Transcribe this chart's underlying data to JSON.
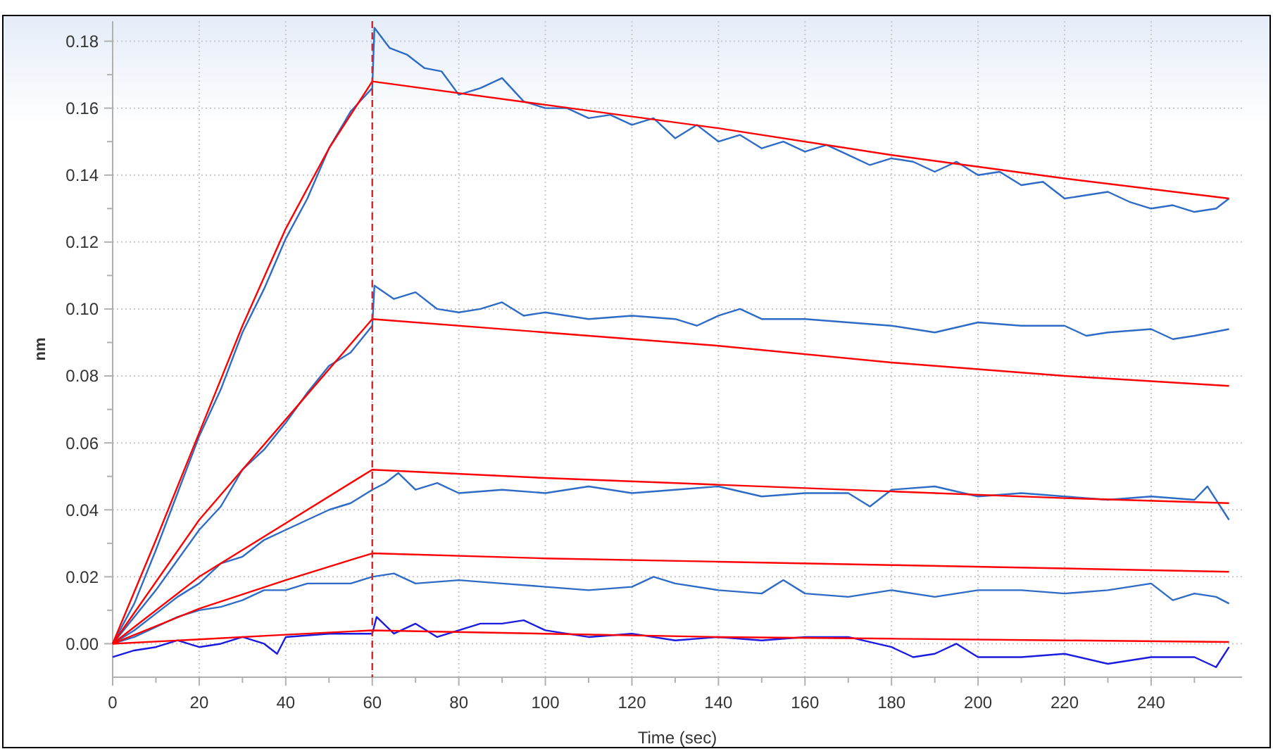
{
  "chart_data": {
    "type": "line",
    "xlabel": "Time (sec)",
    "ylabel": "nm",
    "xlim": [
      0,
      261
    ],
    "ylim": [
      -0.01,
      0.186
    ],
    "xticks": [
      0,
      {
        "value": 10,
        "label": null
      },
      20,
      {
        "value": 30,
        "label": null
      },
      40,
      {
        "value": 50,
        "label": null
      },
      60,
      {
        "value": 70,
        "label": null
      },
      80,
      {
        "value": 90,
        "label": null
      },
      100,
      {
        "value": 110,
        "label": null
      },
      120,
      {
        "value": 130,
        "label": null
      },
      140,
      {
        "value": 150,
        "label": null
      },
      160,
      {
        "value": 170,
        "label": null
      },
      180,
      {
        "value": 190,
        "label": null
      },
      200,
      {
        "value": 210,
        "label": null
      },
      220,
      {
        "value": 230,
        "label": null
      },
      240,
      {
        "value": 250,
        "label": null
      }
    ],
    "yticks": [
      {
        "value": 0,
        "label": "0.00"
      },
      {
        "value": 0.01,
        "label": null
      },
      0.02,
      {
        "value": 0.03,
        "label": null
      },
      0.04,
      {
        "value": 0.05,
        "label": null
      },
      0.06,
      {
        "value": 0.07,
        "label": null
      },
      0.08,
      {
        "value": 0.09,
        "label": null
      },
      {
        "value": 0.1,
        "label": "0.10"
      },
      {
        "value": 0.11,
        "label": null
      },
      0.12,
      {
        "value": 0.13,
        "label": null
      },
      0.14,
      {
        "value": 0.15,
        "label": null
      },
      0.16,
      {
        "value": 0.17,
        "label": null
      },
      0.18
    ],
    "grid": true,
    "line_style": "solid",
    "marker": "none",
    "ref_lines": [
      {
        "axis": "x",
        "value": 60,
        "color": "#e02020",
        "line_style": "dashed"
      }
    ],
    "series": [
      {
        "color": "#2e6bc6",
        "x": [
          0,
          5,
          10,
          15,
          20,
          25,
          30,
          35,
          40,
          45,
          50,
          55,
          60,
          60.5,
          64,
          68,
          72,
          76,
          80,
          85,
          90,
          95,
          100,
          105,
          110,
          115,
          120,
          125,
          130,
          135,
          140,
          145,
          150,
          155,
          160,
          165,
          170,
          175,
          180,
          185,
          190,
          195,
          200,
          205,
          210,
          215,
          220,
          225,
          230,
          235,
          240,
          245,
          250,
          255,
          258
        ],
        "values": [
          0,
          0.012,
          0.028,
          0.045,
          0.062,
          0.076,
          0.093,
          0.106,
          0.121,
          0.133,
          0.148,
          0.159,
          0.166,
          0.184,
          0.178,
          0.176,
          0.172,
          0.171,
          0.164,
          0.166,
          0.169,
          0.162,
          0.16,
          0.16,
          0.157,
          0.158,
          0.155,
          0.157,
          0.151,
          0.155,
          0.15,
          0.152,
          0.148,
          0.15,
          0.147,
          0.149,
          0.146,
          0.143,
          0.145,
          0.144,
          0.141,
          0.144,
          0.14,
          0.141,
          0.137,
          0.138,
          0.133,
          0.134,
          0.135,
          0.132,
          0.13,
          0.131,
          0.129,
          0.13,
          0.133
        ]
      },
      {
        "color": "#2e6bc6",
        "x": [
          0,
          5,
          10,
          15,
          20,
          25,
          30,
          35,
          40,
          45,
          50,
          55,
          60,
          60.5,
          65,
          70,
          75,
          80,
          85,
          90,
          95,
          100,
          110,
          120,
          130,
          135,
          140,
          145,
          150,
          160,
          170,
          180,
          190,
          200,
          210,
          220,
          225,
          230,
          240,
          245,
          250,
          258
        ],
        "values": [
          0,
          0.008,
          0.016,
          0.025,
          0.034,
          0.041,
          0.052,
          0.058,
          0.066,
          0.075,
          0.083,
          0.087,
          0.095,
          0.107,
          0.103,
          0.105,
          0.1,
          0.099,
          0.1,
          0.102,
          0.098,
          0.099,
          0.097,
          0.098,
          0.097,
          0.095,
          0.098,
          0.1,
          0.097,
          0.097,
          0.096,
          0.095,
          0.093,
          0.096,
          0.095,
          0.095,
          0.092,
          0.093,
          0.094,
          0.091,
          0.092,
          0.094
        ]
      },
      {
        "color": "#2e6bc6",
        "x": [
          0,
          5,
          10,
          15,
          20,
          25,
          30,
          35,
          40,
          45,
          50,
          55,
          60,
          63,
          66,
          70,
          75,
          80,
          90,
          100,
          110,
          120,
          130,
          140,
          150,
          160,
          170,
          175,
          180,
          190,
          200,
          210,
          220,
          230,
          240,
          250,
          253,
          258
        ],
        "values": [
          0,
          0.004,
          0.009,
          0.014,
          0.018,
          0.024,
          0.026,
          0.031,
          0.034,
          0.037,
          0.04,
          0.042,
          0.046,
          0.048,
          0.051,
          0.046,
          0.048,
          0.045,
          0.046,
          0.045,
          0.047,
          0.045,
          0.046,
          0.047,
          0.044,
          0.045,
          0.045,
          0.041,
          0.046,
          0.047,
          0.044,
          0.045,
          0.044,
          0.043,
          0.044,
          0.043,
          0.047,
          0.037
        ]
      },
      {
        "color": "#2e6bc6",
        "x": [
          0,
          5,
          10,
          15,
          20,
          25,
          30,
          35,
          40,
          45,
          50,
          55,
          60,
          65,
          70,
          80,
          90,
          100,
          110,
          120,
          125,
          130,
          140,
          150,
          155,
          160,
          170,
          180,
          190,
          200,
          210,
          220,
          230,
          240,
          245,
          250,
          255,
          258
        ],
        "values": [
          0,
          0.002,
          0.005,
          0.008,
          0.01,
          0.011,
          0.013,
          0.016,
          0.016,
          0.018,
          0.018,
          0.018,
          0.02,
          0.021,
          0.018,
          0.019,
          0.018,
          0.017,
          0.016,
          0.017,
          0.02,
          0.018,
          0.016,
          0.015,
          0.019,
          0.015,
          0.014,
          0.016,
          0.014,
          0.016,
          0.016,
          0.015,
          0.016,
          0.018,
          0.013,
          0.015,
          0.014,
          0.012
        ]
      },
      {
        "color": "#1a1ae0",
        "x": [
          0,
          5,
          10,
          15,
          20,
          25,
          30,
          35,
          38,
          40,
          50,
          60,
          61,
          65,
          70,
          75,
          80,
          85,
          90,
          95,
          100,
          110,
          120,
          130,
          140,
          150,
          160,
          170,
          180,
          185,
          190,
          195,
          200,
          210,
          220,
          230,
          240,
          250,
          255,
          258
        ],
        "values": [
          -0.004,
          -0.002,
          -0.001,
          0.001,
          -0.001,
          0,
          0.002,
          0,
          -0.003,
          0.002,
          0.003,
          0.003,
          0.008,
          0.003,
          0.006,
          0.002,
          0.004,
          0.006,
          0.006,
          0.007,
          0.004,
          0.002,
          0.003,
          0.001,
          0.002,
          0.001,
          0.002,
          0.002,
          -0.001,
          -0.004,
          -0.003,
          0,
          -0.004,
          -0.004,
          -0.003,
          -0.006,
          -0.004,
          -0.004,
          -0.007,
          -0.001
        ]
      },
      {
        "color": "#ff0000",
        "x": [
          0,
          10,
          20,
          30,
          40,
          50,
          60,
          100,
          140,
          180,
          220,
          258
        ],
        "values": [
          0,
          0.031,
          0.063,
          0.095,
          0.124,
          0.148,
          0.168,
          0.161,
          0.154,
          0.146,
          0.139,
          0.133
        ]
      },
      {
        "color": "#ff0000",
        "x": [
          0,
          20,
          40,
          60,
          100,
          140,
          180,
          220,
          258
        ],
        "values": [
          0,
          0.037,
          0.067,
          0.097,
          0.093,
          0.089,
          0.084,
          0.08,
          0.077
        ]
      },
      {
        "color": "#ff0000",
        "x": [
          0,
          20,
          40,
          60,
          100,
          140,
          180,
          220,
          258
        ],
        "values": [
          0,
          0.02,
          0.036,
          0.052,
          0.0495,
          0.0475,
          0.0455,
          0.0435,
          0.042
        ]
      },
      {
        "color": "#ff0000",
        "x": [
          0,
          20,
          40,
          60,
          100,
          140,
          180,
          220,
          258
        ],
        "values": [
          0,
          0.0105,
          0.019,
          0.027,
          0.0255,
          0.0245,
          0.0235,
          0.0225,
          0.0215
        ]
      },
      {
        "color": "#ff0000",
        "x": [
          0,
          20,
          40,
          60,
          100,
          140,
          180,
          220,
          258
        ],
        "values": [
          0,
          0.0013,
          0.0027,
          0.004,
          0.003,
          0.002,
          0.0015,
          0.001,
          0.0005
        ]
      }
    ]
  }
}
